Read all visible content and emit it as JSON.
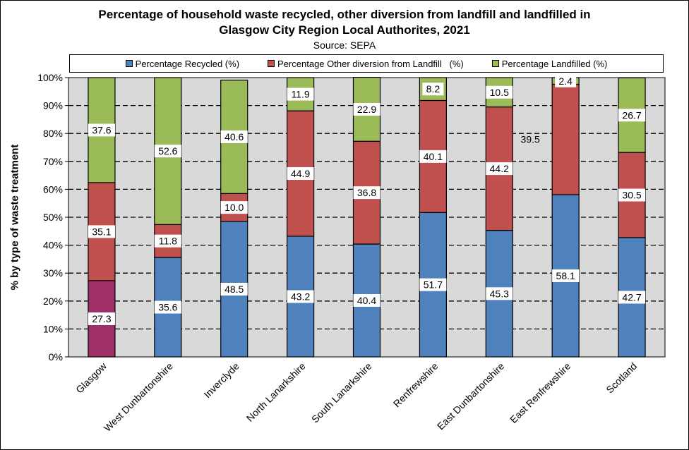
{
  "chart_data": {
    "type": "bar",
    "stacked": true,
    "title_line1": "Percentage of household waste recycled, other diversion from landfill and landfilled in",
    "title_line2": "Glasgow City Region Local Authorites, 2021",
    "subtitle": "Source: SEPA",
    "ylabel": "% by type of waste treatment",
    "xlabel": "",
    "ylim": [
      0,
      100
    ],
    "yticks": [
      "0%",
      "10%",
      "20%",
      "30%",
      "40%",
      "50%",
      "60%",
      "70%",
      "80%",
      "90%",
      "100%"
    ],
    "legend_position": "top",
    "categories": [
      "Glasgow",
      "West Dunbartonshire",
      "Inverclyde",
      "North Lanarkshire",
      "South Lanarkshire",
      "Renfrewshire",
      "East Dunbartonshire",
      "East Renfrewshire",
      "Scotland"
    ],
    "series": [
      {
        "name": "Percentage Recycled (%)",
        "color": "#4F81BD",
        "values": [
          27.3,
          35.6,
          48.5,
          43.2,
          40.4,
          51.7,
          45.3,
          58.1,
          42.7
        ],
        "labels": [
          "27.3",
          "35.6",
          "48.5",
          "43.2",
          "40.4",
          "51.7",
          "45.3",
          "58.1",
          "42.7"
        ]
      },
      {
        "name": "Percentage Other diversion from Landfill   (%)",
        "color": "#C0504D",
        "values": [
          35.1,
          11.8,
          10.0,
          44.9,
          36.8,
          40.1,
          44.2,
          39.5,
          30.5
        ],
        "labels": [
          "35.1",
          "11.8",
          "10.0",
          "44.9",
          "36.8",
          "40.1",
          "44.2",
          "39.5",
          "30.5"
        ]
      },
      {
        "name": "Percentage Landfilled (%)",
        "color": "#9BBB59",
        "values": [
          37.6,
          52.6,
          40.6,
          11.9,
          22.9,
          8.2,
          10.5,
          2.4,
          26.7
        ],
        "labels": [
          "37.6",
          "52.6",
          "40.6",
          "11.9",
          "22.9",
          "8.2",
          "10.5",
          "2.4",
          "26.7"
        ]
      }
    ],
    "highlight_color": "#9E3067",
    "plot_background": "#D9D9D9",
    "gridlines": "dashed"
  }
}
